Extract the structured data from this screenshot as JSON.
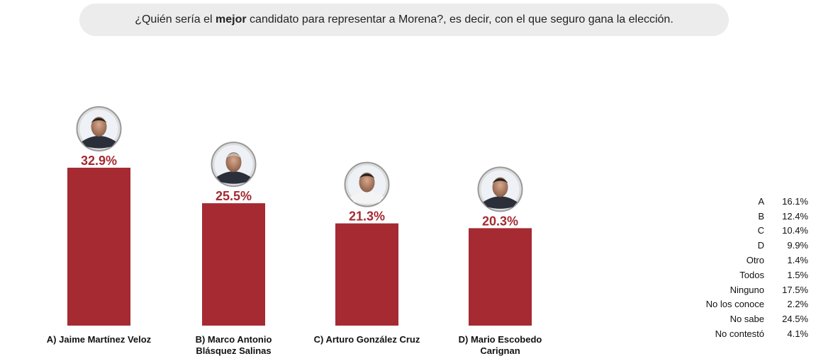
{
  "chart_data": {
    "type": "bar",
    "title_parts": [
      "¿Quién sería el ",
      "mejor",
      " candidato para representar a Morena?, es decir, con el que seguro gana la elección."
    ],
    "categories": [
      "A) Jaime Martínez Veloz",
      "B) Marco Antonio Blásquez Salinas",
      "C) Arturo González Cruz",
      "D) Mario Escobedo Carignan"
    ],
    "values": [
      32.9,
      25.5,
      21.3,
      20.3
    ],
    "value_labels": [
      "32.9%",
      "25.5%",
      "21.3%",
      "20.3%"
    ],
    "ylim": [
      0,
      35
    ],
    "bar_color": "#a52a31",
    "label_color": "#a52a31",
    "side_table": [
      {
        "k": "A",
        "v": "16.1%"
      },
      {
        "k": "B",
        "v": "12.4%"
      },
      {
        "k": "C",
        "v": "10.4%"
      },
      {
        "k": "D",
        "v": "9.9%"
      },
      {
        "k": "Otro",
        "v": "1.4%"
      },
      {
        "k": "Todos",
        "v": "1.5%"
      },
      {
        "k": "Ninguno",
        "v": "17.5%"
      },
      {
        "k": "No los conoce",
        "v": "2.2%"
      },
      {
        "k": "No sabe",
        "v": "24.5%"
      },
      {
        "k": "No contestó",
        "v": "4.1%"
      }
    ]
  }
}
